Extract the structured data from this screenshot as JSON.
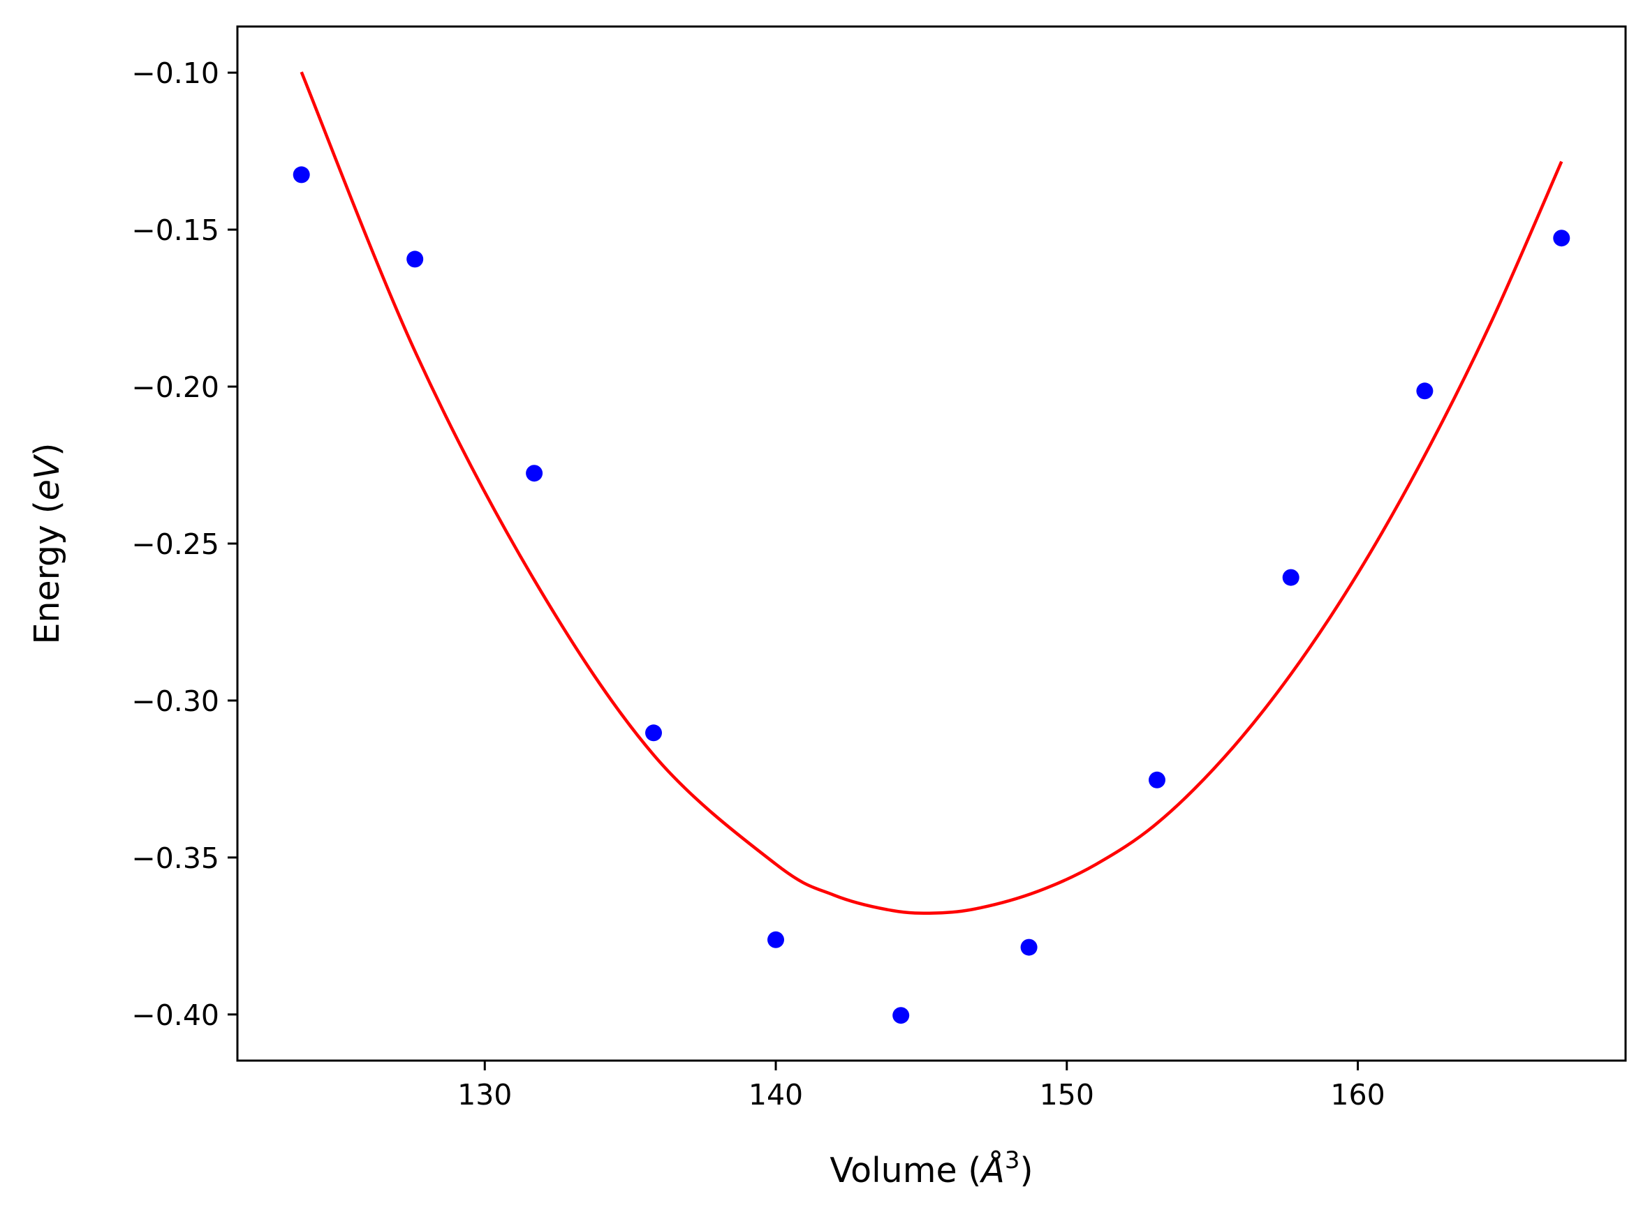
{
  "chart_data": {
    "type": "scatter",
    "title": "",
    "xlabel": "Volume ($\\AA^3$)",
    "ylabel": "Energy ($eV$)",
    "xlim": [
      121.5,
      169.2
    ],
    "ylim": [
      -0.4147,
      -0.0853
    ],
    "xticks": [
      {
        "value": 130,
        "label": "130"
      },
      {
        "value": 140,
        "label": "140"
      },
      {
        "value": 150,
        "label": "150"
      },
      {
        "value": 160,
        "label": "160"
      }
    ],
    "yticks": [
      {
        "value": -0.1,
        "label": "−0.10"
      },
      {
        "value": -0.15,
        "label": "−0.15"
      },
      {
        "value": -0.2,
        "label": "−0.20"
      },
      {
        "value": -0.25,
        "label": "−0.25"
      },
      {
        "value": -0.3,
        "label": "−0.30"
      },
      {
        "value": -0.35,
        "label": "−0.35"
      },
      {
        "value": -0.4,
        "label": "−0.40"
      }
    ],
    "grid": false,
    "series": [
      {
        "kind": "scatter",
        "color": "#0000ff",
        "x": [
          123.7,
          127.6,
          131.7,
          135.8,
          140.0,
          144.3,
          148.7,
          153.1,
          157.7,
          162.3,
          167.0
        ],
        "y": [
          -0.1325,
          -0.1594,
          -0.2276,
          -0.3103,
          -0.3762,
          -0.4003,
          -0.3786,
          -0.3253,
          -0.2608,
          -0.2014,
          -0.1527
        ]
      },
      {
        "kind": "line",
        "color": "#ff0000",
        "x": [
          123.7,
          127.6,
          131.7,
          135.8,
          140.0,
          142.0,
          144.0,
          145.5,
          147.0,
          149.0,
          151.0,
          153.1,
          155.4,
          157.7,
          160.0,
          162.3,
          164.6,
          167.0
        ],
        "y": [
          -0.0998,
          -0.1887,
          -0.2616,
          -0.3173,
          -0.3521,
          -0.362,
          -0.3669,
          -0.3677,
          -0.3661,
          -0.3608,
          -0.3522,
          -0.3391,
          -0.3182,
          -0.2916,
          -0.2595,
          -0.2219,
          -0.1791,
          -0.1283
        ]
      }
    ]
  }
}
